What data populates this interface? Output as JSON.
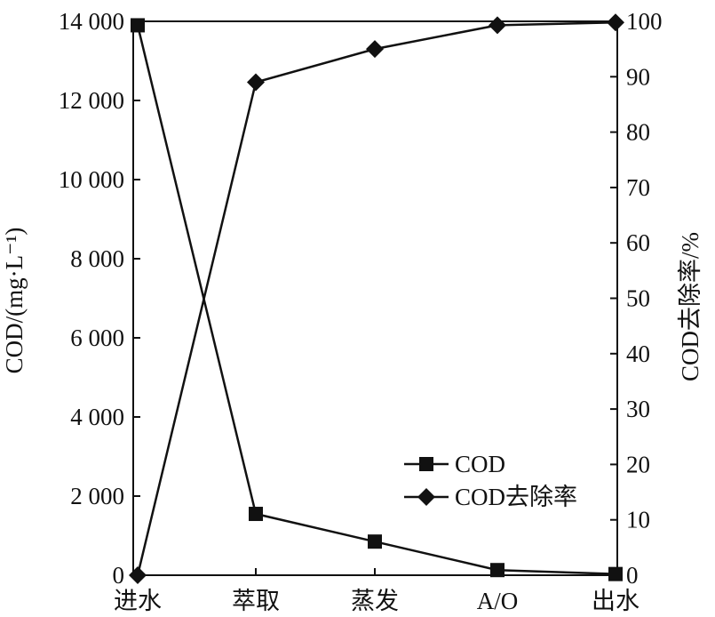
{
  "chart_data": {
    "type": "line",
    "categories": [
      "进水",
      "萃取",
      "蒸发",
      "A/O",
      "出水"
    ],
    "y_left": {
      "label": "COD/(mg·L⁻¹)",
      "ylim": [
        0,
        14000
      ],
      "ticks": [
        0,
        2000,
        4000,
        6000,
        8000,
        10000,
        12000,
        14000
      ],
      "tick_labels": [
        "0",
        "2 000",
        "4 000",
        "6 000",
        "8 000",
        "10 000",
        "12 000",
        "14 000"
      ]
    },
    "y_right": {
      "label": "COD去除率/%",
      "ylim": [
        0,
        100
      ],
      "ticks": [
        0,
        10,
        20,
        30,
        40,
        50,
        60,
        70,
        80,
        90,
        100
      ],
      "tick_labels": [
        "0",
        "10",
        "20",
        "30",
        "40",
        "50",
        "60",
        "70",
        "80",
        "90",
        "100"
      ]
    },
    "series": [
      {
        "name": "COD",
        "axis": "left",
        "marker": "square",
        "values": [
          13900,
          1550,
          850,
          130,
          30
        ]
      },
      {
        "name": "COD去除率",
        "axis": "right",
        "marker": "diamond",
        "values": [
          0,
          89,
          95,
          99.3,
          99.8
        ]
      }
    ],
    "legend_position": "bottom-right",
    "grid": false
  }
}
